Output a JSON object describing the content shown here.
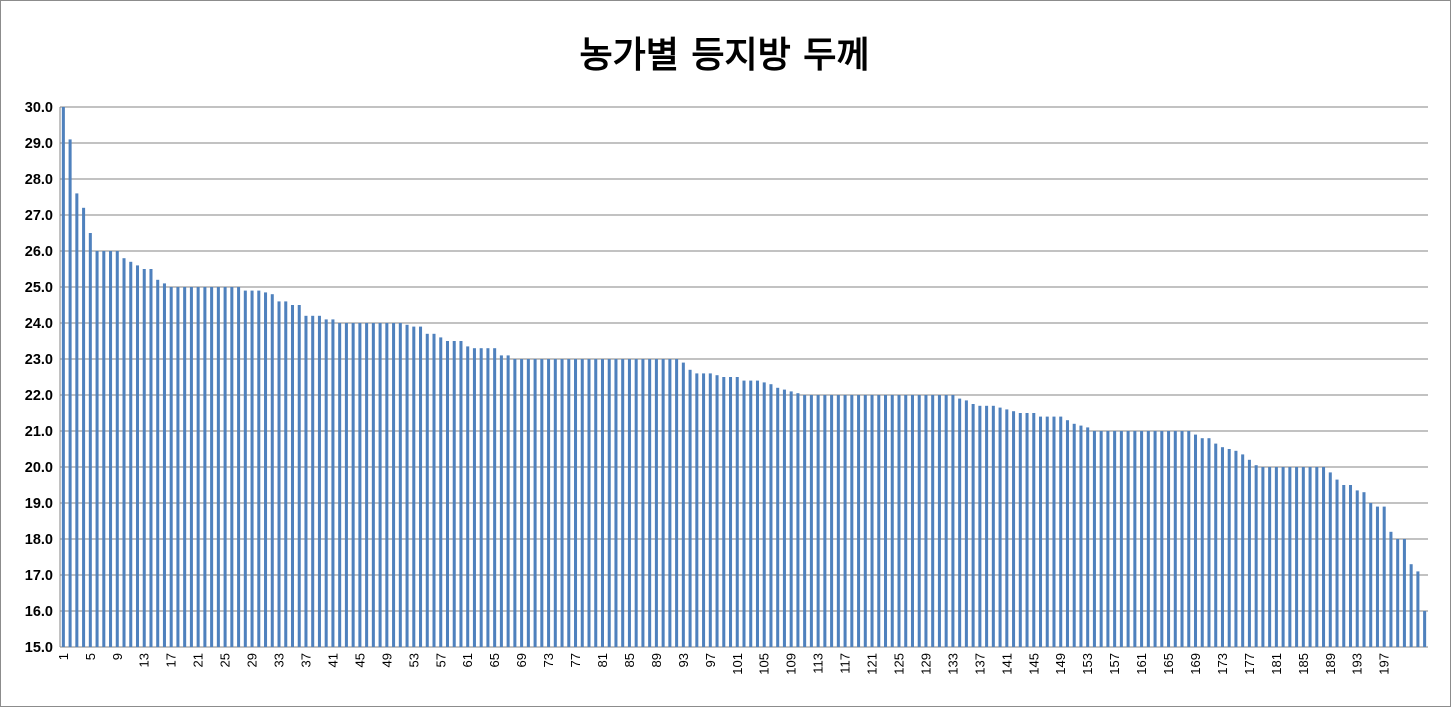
{
  "chart_data": {
    "type": "bar",
    "title": "농가별 등지방 두께",
    "xlabel": "",
    "ylabel": "",
    "ylim": [
      15.0,
      30.0
    ],
    "y_ticks": [
      "15.0",
      "16.0",
      "17.0",
      "18.0",
      "19.0",
      "20.0",
      "21.0",
      "22.0",
      "23.0",
      "24.0",
      "25.0",
      "26.0",
      "27.0",
      "28.0",
      "29.0",
      "30.0"
    ],
    "x_ticks_shown": [
      "1",
      "5",
      "9",
      "13",
      "17",
      "21",
      "25",
      "29",
      "33",
      "37",
      "41",
      "45",
      "49",
      "53",
      "57",
      "61",
      "65",
      "69",
      "73",
      "77",
      "81",
      "85",
      "89",
      "93",
      "97",
      "101",
      "105",
      "109",
      "113",
      "117",
      "121",
      "125",
      "129",
      "133",
      "137",
      "141",
      "145",
      "149",
      "153",
      "157",
      "161",
      "165",
      "169",
      "173",
      "177",
      "181",
      "185",
      "189",
      "193",
      "197"
    ],
    "grid": true,
    "legend": "none",
    "bar_color": "#4f81bd",
    "categories_count": 200,
    "values": [
      30.0,
      29.1,
      27.6,
      27.2,
      26.5,
      26.0,
      26.0,
      26.0,
      26.0,
      25.8,
      25.7,
      25.6,
      25.5,
      25.5,
      25.2,
      25.1,
      25.0,
      25.0,
      25.0,
      25.0,
      25.0,
      25.0,
      25.0,
      25.0,
      25.0,
      25.0,
      25.0,
      24.9,
      24.9,
      24.9,
      24.85,
      24.8,
      24.6,
      24.6,
      24.5,
      24.5,
      24.2,
      24.2,
      24.2,
      24.1,
      24.1,
      24.0,
      24.0,
      24.0,
      24.0,
      24.0,
      24.0,
      24.0,
      24.0,
      24.0,
      24.0,
      23.95,
      23.9,
      23.9,
      23.7,
      23.7,
      23.6,
      23.5,
      23.5,
      23.5,
      23.35,
      23.3,
      23.3,
      23.3,
      23.3,
      23.1,
      23.1,
      23.0,
      23.0,
      23.0,
      23.0,
      23.0,
      23.0,
      23.0,
      23.0,
      23.0,
      23.0,
      23.0,
      23.0,
      23.0,
      23.0,
      23.0,
      23.0,
      23.0,
      23.0,
      23.0,
      23.0,
      23.0,
      23.0,
      23.0,
      23.0,
      23.0,
      22.9,
      22.7,
      22.6,
      22.6,
      22.6,
      22.55,
      22.5,
      22.5,
      22.5,
      22.4,
      22.4,
      22.4,
      22.35,
      22.3,
      22.2,
      22.15,
      22.1,
      22.05,
      22.0,
      22.0,
      22.0,
      22.0,
      22.0,
      22.0,
      22.0,
      22.0,
      22.0,
      22.0,
      22.0,
      22.0,
      22.0,
      22.0,
      22.0,
      22.0,
      22.0,
      22.0,
      22.0,
      22.0,
      22.0,
      22.0,
      22.0,
      21.9,
      21.85,
      21.75,
      21.7,
      21.7,
      21.7,
      21.65,
      21.6,
      21.55,
      21.5,
      21.5,
      21.5,
      21.4,
      21.4,
      21.4,
      21.4,
      21.3,
      21.2,
      21.15,
      21.1,
      21.0,
      21.0,
      21.0,
      21.0,
      21.0,
      21.0,
      21.0,
      21.0,
      21.0,
      21.0,
      21.0,
      21.0,
      21.0,
      21.0,
      21.0,
      20.9,
      20.8,
      20.8,
      20.65,
      20.55,
      20.5,
      20.45,
      20.35,
      20.2,
      20.05,
      20.0,
      20.0,
      20.0,
      20.0,
      20.0,
      20.0,
      20.0,
      20.0,
      20.0,
      20.0,
      19.85,
      19.65,
      19.5,
      19.5,
      19.35,
      19.3,
      19.0,
      18.9,
      18.9,
      18.2,
      18.0,
      18.0,
      17.3,
      17.1,
      16.0
    ]
  }
}
